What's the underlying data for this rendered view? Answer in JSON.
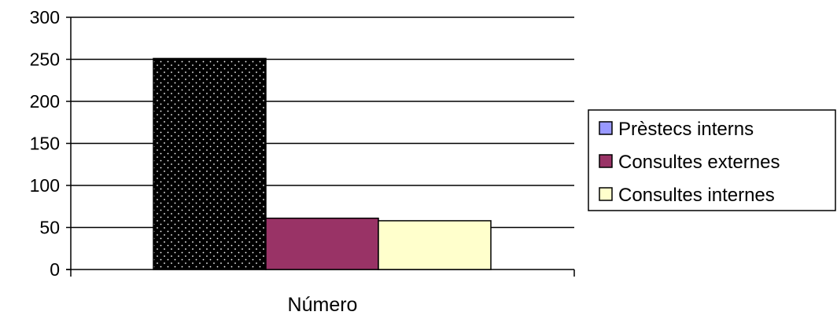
{
  "chart_data": {
    "type": "bar",
    "categories": [
      "Número"
    ],
    "series": [
      {
        "name": "Prèstecs interns",
        "values": [
          251
        ],
        "color": "#9999ff",
        "pattern": "black-dotted"
      },
      {
        "name": "Consultes externes",
        "values": [
          61
        ],
        "color": "#993366"
      },
      {
        "name": "Consultes internes",
        "values": [
          58
        ],
        "color": "#ffffcc"
      }
    ],
    "title": "",
    "xlabel": "",
    "ylabel": "",
    "ylim": [
      0,
      300
    ],
    "yticks": [
      "0",
      "50",
      "100",
      "150",
      "200",
      "250",
      "300"
    ],
    "grid": true,
    "legend": "right"
  }
}
